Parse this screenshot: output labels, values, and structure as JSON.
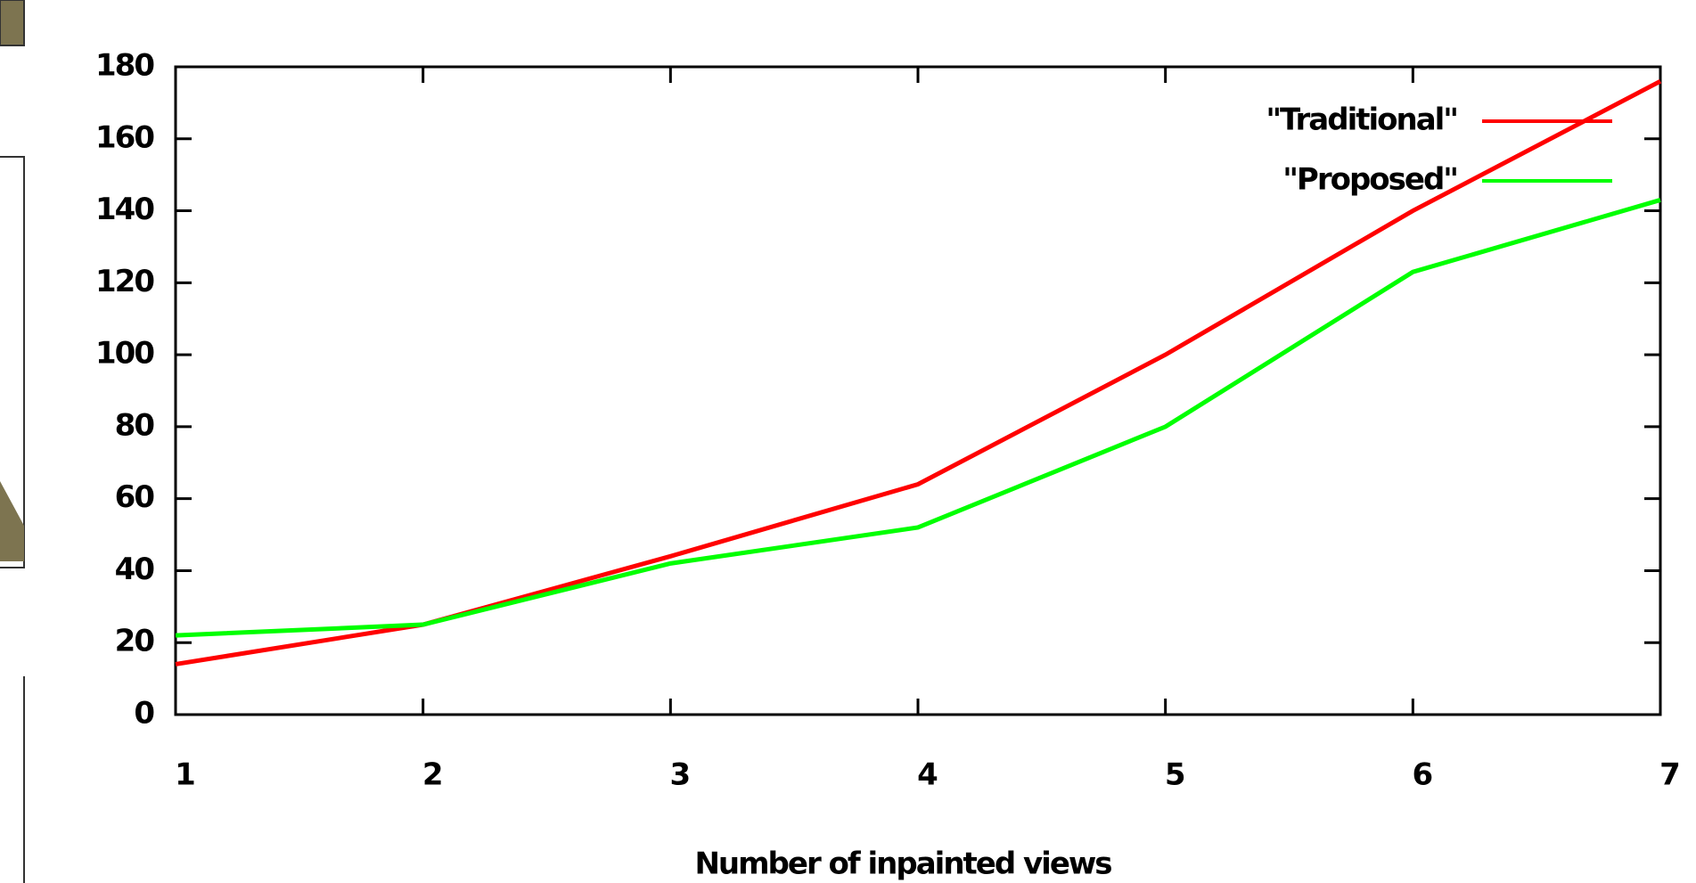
{
  "chart_data": {
    "type": "line",
    "xlabel": "Number of inpainted views",
    "x": [
      1,
      2,
      3,
      4,
      5,
      6,
      7
    ],
    "series": [
      {
        "name": "\"Traditional\"",
        "color": "#ff0000",
        "values": [
          14,
          25,
          44,
          64,
          100,
          140,
          176
        ]
      },
      {
        "name": "\"Proposed\"",
        "color": "#00ff00",
        "values": [
          22,
          25,
          42,
          52,
          80,
          123,
          143
        ]
      }
    ],
    "xlim": [
      1,
      7
    ],
    "xticks": [
      1,
      2,
      3,
      4,
      5,
      6,
      7
    ],
    "ylim": [
      0,
      180
    ],
    "yticks": [
      0,
      20,
      40,
      60,
      80,
      100,
      120,
      140,
      160,
      180
    ],
    "legend": "top-right"
  }
}
